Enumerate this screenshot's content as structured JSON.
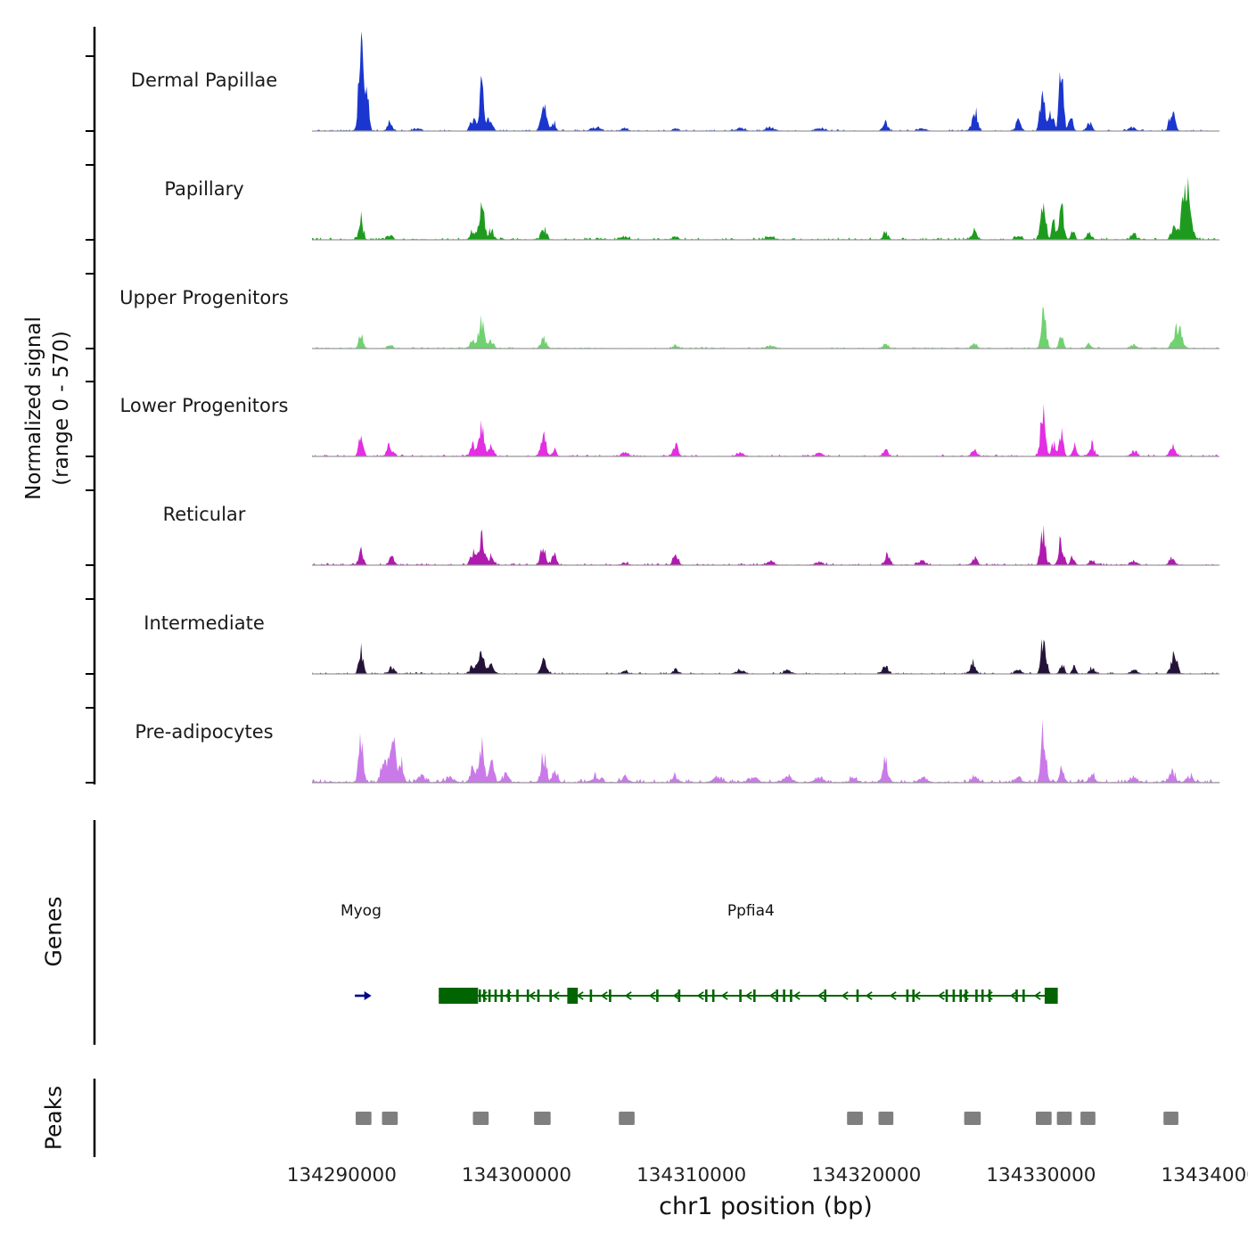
{
  "chart_data": {
    "type": "area",
    "title": "",
    "xlabel": "chr1 position (bp)",
    "ylabel_line1": "Normalized signal",
    "ylabel_line2": "(range 0 - 570)",
    "y_axis_range": [
      0,
      570
    ],
    "x_range_bp": [
      134288300,
      134340200
    ],
    "x_ticks": [
      134290000,
      134300000,
      134310000,
      134320000,
      134330000,
      134340000
    ],
    "x_tick_labels": [
      "134290000",
      "134300000",
      "134310000",
      "134320000",
      "134330000",
      "134340000"
    ],
    "sections": {
      "genes": "Genes",
      "peaks": "Peaks"
    },
    "tracks": [
      {
        "name": "Dermal Papillae",
        "color": "#1a36cf",
        "noise": 0.008,
        "peaks": [
          [
            134291100,
            1.0,
            130
          ],
          [
            134291450,
            0.42,
            110
          ],
          [
            134292750,
            0.1,
            140
          ],
          [
            134294300,
            0.03,
            200
          ],
          [
            134297500,
            0.14,
            140
          ],
          [
            134298000,
            0.5,
            150
          ],
          [
            134298500,
            0.14,
            130
          ],
          [
            134301550,
            0.3,
            150
          ],
          [
            134302100,
            0.1,
            130
          ],
          [
            134304500,
            0.04,
            250
          ],
          [
            134306200,
            0.03,
            200
          ],
          [
            134309100,
            0.04,
            150
          ],
          [
            134312800,
            0.03,
            250
          ],
          [
            134314500,
            0.04,
            250
          ],
          [
            134317300,
            0.03,
            250
          ],
          [
            134321100,
            0.1,
            140
          ],
          [
            134323200,
            0.03,
            200
          ],
          [
            134326200,
            0.24,
            150
          ],
          [
            134328700,
            0.12,
            150
          ],
          [
            134330100,
            0.5,
            140
          ],
          [
            134330600,
            0.25,
            110
          ],
          [
            134331150,
            0.72,
            120
          ],
          [
            134331700,
            0.18,
            110
          ],
          [
            134332750,
            0.1,
            140
          ],
          [
            134335200,
            0.05,
            180
          ],
          [
            134337500,
            0.22,
            160
          ]
        ]
      },
      {
        "name": "Papillary",
        "color": "#1e9b1e",
        "noise": 0.011,
        "peaks": [
          [
            134291100,
            0.26,
            120
          ],
          [
            134292750,
            0.06,
            140
          ],
          [
            134297500,
            0.12,
            140
          ],
          [
            134298000,
            0.46,
            150
          ],
          [
            134298550,
            0.12,
            130
          ],
          [
            134301550,
            0.14,
            150
          ],
          [
            134306200,
            0.03,
            200
          ],
          [
            134309100,
            0.04,
            150
          ],
          [
            134314500,
            0.03,
            250
          ],
          [
            134321100,
            0.08,
            140
          ],
          [
            134326200,
            0.1,
            150
          ],
          [
            134328700,
            0.06,
            150
          ],
          [
            134330100,
            0.52,
            140
          ],
          [
            134330700,
            0.2,
            110
          ],
          [
            134331150,
            0.42,
            130
          ],
          [
            134331800,
            0.1,
            110
          ],
          [
            134332750,
            0.08,
            140
          ],
          [
            134335300,
            0.06,
            180
          ],
          [
            134337600,
            0.14,
            160
          ],
          [
            134338300,
            0.6,
            240
          ]
        ]
      },
      {
        "name": "Upper Progenitors",
        "color": "#70d170",
        "noise": 0.008,
        "peaks": [
          [
            134291100,
            0.16,
            120
          ],
          [
            134292750,
            0.05,
            140
          ],
          [
            134297500,
            0.1,
            140
          ],
          [
            134298000,
            0.32,
            150
          ],
          [
            134298550,
            0.1,
            130
          ],
          [
            134301550,
            0.11,
            150
          ],
          [
            134309100,
            0.03,
            150
          ],
          [
            134314500,
            0.03,
            250
          ],
          [
            134321100,
            0.06,
            140
          ],
          [
            134326200,
            0.06,
            150
          ],
          [
            134330150,
            0.48,
            130
          ],
          [
            134331150,
            0.14,
            120
          ],
          [
            134332750,
            0.05,
            140
          ],
          [
            134335300,
            0.04,
            180
          ],
          [
            134337800,
            0.27,
            210
          ]
        ]
      },
      {
        "name": "Lower Progenitors",
        "color": "#e32ee3",
        "noise": 0.01,
        "peaks": [
          [
            134291100,
            0.26,
            120
          ],
          [
            134292750,
            0.13,
            160
          ],
          [
            134297500,
            0.13,
            140
          ],
          [
            134298000,
            0.34,
            150
          ],
          [
            134298550,
            0.12,
            130
          ],
          [
            134301550,
            0.22,
            150
          ],
          [
            134302150,
            0.08,
            120
          ],
          [
            134306200,
            0.04,
            180
          ],
          [
            134309100,
            0.13,
            140
          ],
          [
            134312800,
            0.04,
            200
          ],
          [
            134317300,
            0.04,
            200
          ],
          [
            134321100,
            0.09,
            140
          ],
          [
            134326200,
            0.07,
            150
          ],
          [
            134330100,
            0.58,
            130
          ],
          [
            134330700,
            0.15,
            110
          ],
          [
            134331150,
            0.24,
            120
          ],
          [
            134331900,
            0.12,
            110
          ],
          [
            134332900,
            0.14,
            130
          ],
          [
            134335300,
            0.05,
            180
          ],
          [
            134337500,
            0.11,
            160
          ]
        ]
      },
      {
        "name": "Reticular",
        "color": "#b01ab0",
        "noise": 0.01,
        "peaks": [
          [
            134291100,
            0.22,
            120
          ],
          [
            134292850,
            0.09,
            150
          ],
          [
            134297500,
            0.13,
            140
          ],
          [
            134298000,
            0.32,
            150
          ],
          [
            134298550,
            0.11,
            130
          ],
          [
            134301500,
            0.2,
            150
          ],
          [
            134302150,
            0.12,
            130
          ],
          [
            134306200,
            0.03,
            180
          ],
          [
            134309100,
            0.14,
            140
          ],
          [
            134314500,
            0.04,
            220
          ],
          [
            134317300,
            0.04,
            200
          ],
          [
            134321200,
            0.12,
            140
          ],
          [
            134323200,
            0.05,
            180
          ],
          [
            134326200,
            0.08,
            150
          ],
          [
            134330100,
            0.36,
            140
          ],
          [
            134331150,
            0.3,
            130
          ],
          [
            134331800,
            0.1,
            110
          ],
          [
            134332900,
            0.07,
            140
          ],
          [
            134335300,
            0.04,
            180
          ],
          [
            134337500,
            0.09,
            160
          ]
        ]
      },
      {
        "name": "Intermediate",
        "color": "#251239",
        "noise": 0.008,
        "peaks": [
          [
            134291100,
            0.26,
            120
          ],
          [
            134292850,
            0.07,
            150
          ],
          [
            134297500,
            0.11,
            140
          ],
          [
            134298000,
            0.34,
            150
          ],
          [
            134298550,
            0.1,
            130
          ],
          [
            134301550,
            0.2,
            150
          ],
          [
            134306200,
            0.03,
            180
          ],
          [
            134309100,
            0.05,
            150
          ],
          [
            134312800,
            0.04,
            220
          ],
          [
            134315500,
            0.04,
            220
          ],
          [
            134321100,
            0.1,
            140
          ],
          [
            134326100,
            0.14,
            150
          ],
          [
            134328700,
            0.06,
            160
          ],
          [
            134330150,
            0.5,
            130
          ],
          [
            134331200,
            0.14,
            120
          ],
          [
            134331900,
            0.08,
            110
          ],
          [
            134332900,
            0.07,
            140
          ],
          [
            134335300,
            0.05,
            180
          ],
          [
            134337600,
            0.22,
            170
          ]
        ]
      },
      {
        "name": "Pre-adipocytes",
        "color": "#c97ae8",
        "noise": 0.018,
        "peaks": [
          [
            134291100,
            0.5,
            130
          ],
          [
            134292400,
            0.28,
            160
          ],
          [
            134292900,
            0.54,
            150
          ],
          [
            134293400,
            0.22,
            130
          ],
          [
            134294600,
            0.08,
            200
          ],
          [
            134296200,
            0.06,
            200
          ],
          [
            134297500,
            0.2,
            140
          ],
          [
            134298000,
            0.4,
            150
          ],
          [
            134298600,
            0.24,
            130
          ],
          [
            134299400,
            0.1,
            150
          ],
          [
            134301550,
            0.34,
            150
          ],
          [
            134302200,
            0.12,
            130
          ],
          [
            134304500,
            0.06,
            220
          ],
          [
            134306200,
            0.06,
            200
          ],
          [
            134309100,
            0.07,
            160
          ],
          [
            134311500,
            0.05,
            250
          ],
          [
            134313500,
            0.06,
            250
          ],
          [
            134315500,
            0.06,
            250
          ],
          [
            134317300,
            0.06,
            220
          ],
          [
            134319300,
            0.05,
            200
          ],
          [
            134321100,
            0.26,
            140
          ],
          [
            134323200,
            0.06,
            200
          ],
          [
            134326200,
            0.09,
            160
          ],
          [
            134328700,
            0.06,
            180
          ],
          [
            134330150,
            0.6,
            130
          ],
          [
            134331200,
            0.18,
            120
          ],
          [
            134332900,
            0.09,
            150
          ],
          [
            134335300,
            0.07,
            200
          ],
          [
            134337500,
            0.12,
            170
          ],
          [
            134338500,
            0.07,
            180
          ]
        ]
      }
    ],
    "genes": [
      {
        "name": "Myog",
        "color": "#00008b",
        "strand": "+",
        "start": 134290750,
        "end": 134291700,
        "label_bp": 134291100
      },
      {
        "name": "Ppfia4",
        "color": "#006400",
        "strand": "-",
        "start": 134295550,
        "end": 134330950,
        "label_bp": 134313400,
        "blocks": [
          [
            134295550,
            134297800
          ],
          [
            134302900,
            134303500
          ],
          [
            134330200,
            134330950
          ]
        ],
        "exons": [
          134297900,
          134298150,
          134298450,
          134298800,
          134299150,
          134299550,
          134300050,
          134300650,
          134301250,
          134301950,
          134303100,
          134304250,
          134305350,
          134308050,
          134309300,
          134310850,
          134311250,
          134312800,
          134313600,
          134314900,
          134315300,
          134315700,
          134317650,
          134319500,
          134322350,
          134322700,
          134324600,
          134325000,
          134325400,
          134325700,
          134326300,
          134326650,
          134327050,
          134328600,
          134329000
        ]
      }
    ],
    "peak_regions": [
      [
        134290800,
        134291700
      ],
      [
        134292300,
        134293200
      ],
      [
        134297500,
        134298400
      ],
      [
        134301000,
        134301950
      ],
      [
        134305850,
        134306750
      ],
      [
        134318900,
        134319800
      ],
      [
        134320700,
        134321550
      ],
      [
        134325600,
        134326550
      ],
      [
        134329700,
        134330600
      ],
      [
        134330900,
        134331750
      ],
      [
        134332250,
        134333100
      ],
      [
        134337000,
        134337850
      ]
    ]
  }
}
